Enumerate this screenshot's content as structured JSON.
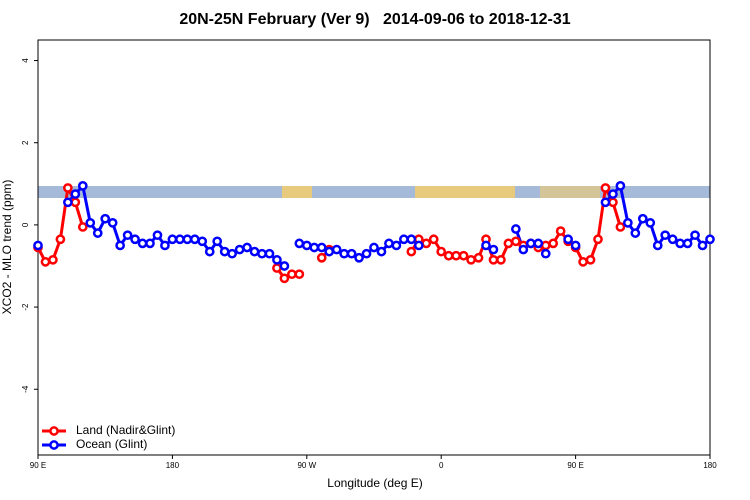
{
  "chart_data": {
    "type": "line",
    "title": "20N-25N February (Ver 9)   2014-09-06 to 2018-12-31",
    "x_label": "Longitude (deg E)",
    "y_label": "XCO2 - MLO trend (ppm)",
    "x": [
      90,
      95,
      100,
      105,
      110,
      115,
      120,
      125,
      130,
      135,
      140,
      145,
      150,
      155,
      160,
      165,
      170,
      175,
      180,
      185,
      190,
      195,
      200,
      205,
      210,
      215,
      220,
      225,
      230,
      235,
      240,
      245,
      250,
      255,
      260,
      265,
      270,
      275,
      280,
      285,
      290,
      295,
      300,
      305,
      310,
      315,
      320,
      325,
      330,
      335,
      340,
      345,
      350,
      355,
      360,
      365,
      370,
      375,
      380,
      385,
      390,
      395,
      400,
      405,
      410,
      415,
      420,
      425,
      430,
      435,
      440,
      445,
      450,
      455,
      460,
      465,
      470,
      475,
      480,
      485,
      490,
      495,
      500,
      505,
      510,
      515,
      520,
      525,
      530,
      535,
      540
    ],
    "series": [
      {
        "name": "Land (Nadir&Glint)",
        "color": "#ff0000",
        "values": [
          -0.55,
          -0.9,
          -0.85,
          -0.35,
          0.9,
          0.55,
          -0.05,
          null,
          null,
          null,
          null,
          null,
          null,
          null,
          null,
          null,
          null,
          null,
          null,
          null,
          null,
          null,
          null,
          null,
          null,
          null,
          null,
          null,
          null,
          null,
          null,
          null,
          -1.05,
          -1.3,
          -1.2,
          -1.2,
          null,
          null,
          -0.8,
          -0.6,
          null,
          null,
          null,
          null,
          null,
          null,
          null,
          null,
          null,
          null,
          -0.65,
          -0.35,
          -0.45,
          -0.35,
          -0.65,
          -0.75,
          -0.75,
          -0.75,
          -0.85,
          -0.8,
          -0.35,
          -0.85,
          -0.85,
          -0.45,
          -0.4,
          -0.5,
          -0.45,
          -0.55,
          -0.5,
          -0.45,
          -0.15,
          -0.4,
          -0.55,
          -0.9,
          -0.85,
          -0.35,
          0.9,
          0.55,
          -0.05,
          null,
          null,
          null,
          null,
          null,
          null,
          null,
          null,
          null,
          null,
          null,
          null
        ]
      },
      {
        "name": "Ocean (Glint)",
        "color": "#0000ff",
        "values": [
          -0.5,
          null,
          null,
          null,
          0.55,
          0.75,
          0.95,
          0.05,
          -0.2,
          0.15,
          0.05,
          -0.5,
          -0.25,
          -0.35,
          -0.45,
          -0.45,
          -0.25,
          -0.5,
          -0.35,
          -0.35,
          -0.35,
          -0.35,
          -0.4,
          -0.65,
          -0.4,
          -0.65,
          -0.7,
          -0.6,
          -0.55,
          -0.65,
          -0.7,
          -0.7,
          -0.85,
          -1.0,
          null,
          -0.45,
          -0.5,
          -0.55,
          -0.55,
          -0.65,
          -0.6,
          -0.7,
          -0.7,
          -0.8,
          -0.7,
          -0.55,
          -0.65,
          -0.45,
          -0.5,
          -0.35,
          -0.35,
          -0.5,
          null,
          null,
          null,
          null,
          null,
          null,
          null,
          null,
          -0.5,
          -0.6,
          null,
          null,
          -0.1,
          -0.6,
          -0.45,
          -0.45,
          -0.7,
          null,
          null,
          -0.35,
          -0.5,
          null,
          null,
          null,
          0.55,
          0.75,
          0.95,
          0.05,
          -0.2,
          0.15,
          0.05,
          -0.5,
          -0.25,
          -0.35,
          -0.45,
          -0.45,
          -0.25,
          -0.5,
          -0.35
        ]
      }
    ],
    "xlim": [
      90,
      540
    ],
    "xticks": [
      {
        "value": 90,
        "label": "90 E"
      },
      {
        "value": 180,
        "label": "180"
      },
      {
        "value": 270,
        "label": "90 W"
      },
      {
        "value": 360,
        "label": "0"
      },
      {
        "value": 450,
        "label": "90 E"
      },
      {
        "value": 540,
        "label": "180"
      }
    ],
    "ylim": [
      -5.6,
      4.5
    ],
    "yticks": [
      -4,
      -2,
      0,
      2,
      4
    ],
    "legend": "bottom-left"
  }
}
